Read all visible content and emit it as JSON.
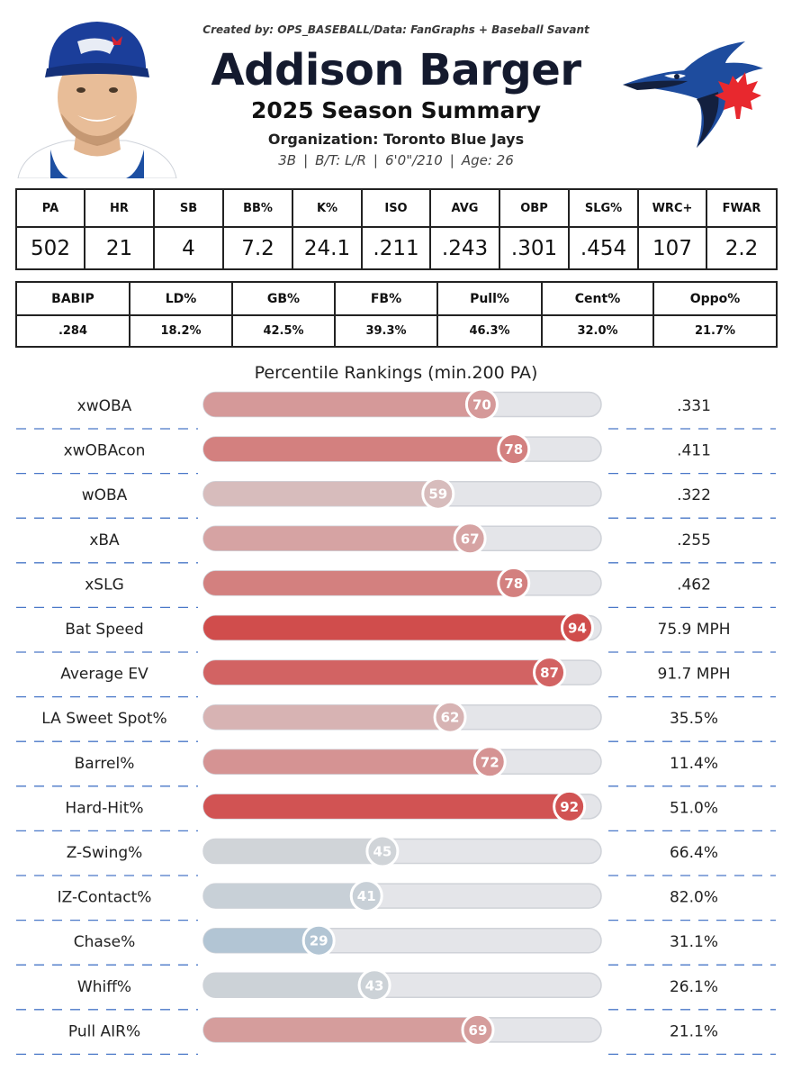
{
  "header": {
    "credit": "Created by: OPS_BASEBALL/Data: FanGraphs + Baseball Savant",
    "player_name": "Addison Barger",
    "season_title": "2025 Season Summary",
    "organization": "Organization: Toronto Blue Jays",
    "position": "3B",
    "bats_throws": "B/T: L/R",
    "height_weight": "6'0\"/210",
    "age": "Age: 26"
  },
  "stats_row1": {
    "headers": [
      "PA",
      "HR",
      "SB",
      "BB%",
      "K%",
      "ISO",
      "AVG",
      "OBP",
      "SLG%",
      "WRC+",
      "FWAR"
    ],
    "values": [
      "502",
      "21",
      "4",
      "7.2",
      "24.1",
      ".211",
      ".243",
      ".301",
      ".454",
      "107",
      "2.2"
    ]
  },
  "stats_row2": {
    "headers": [
      "BABIP",
      "LD%",
      "GB%",
      "FB%",
      "Pull%",
      "Cent%",
      "Oppo%"
    ],
    "values": [
      ".284",
      "18.2%",
      "42.5%",
      "39.3%",
      "46.3%",
      "32.0%",
      "21.7%"
    ]
  },
  "chart_data": {
    "type": "bar",
    "title": "Percentile Rankings (min.200 PA)",
    "xlim": [
      0,
      100
    ],
    "categories": [
      "xwOBA",
      "xwOBAcon",
      "wOBA",
      "xBA",
      "xSLG",
      "Bat Speed",
      "Average EV",
      "LA Sweet Spot%",
      "Barrel%",
      "Hard-Hit%",
      "Z-Swing%",
      "IZ-Contact%",
      "Chase%",
      "Whiff%",
      "Pull AIR%"
    ],
    "values": [
      70,
      78,
      59,
      67,
      78,
      94,
      87,
      62,
      72,
      92,
      45,
      41,
      29,
      43,
      69
    ],
    "stat_values": [
      ".331",
      ".411",
      ".322",
      ".255",
      ".462",
      "75.9 MPH",
      "91.7 MPH",
      "35.5%",
      "11.4%",
      "51.0%",
      "66.4%",
      "82.0%",
      "31.1%",
      "26.1%",
      "21.1%"
    ],
    "colors": {
      "track": "#e4e5e9",
      "low": "#7da9ce",
      "mid": "#d9d9d9",
      "high": "#cf3a39",
      "divider": "#4a78c8"
    }
  }
}
